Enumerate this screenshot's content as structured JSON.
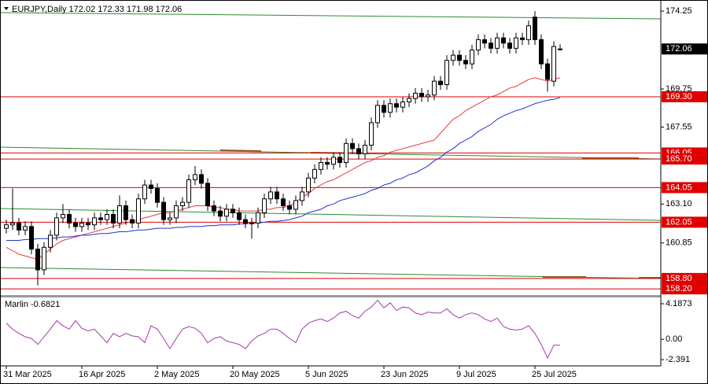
{
  "chart_data": {
    "type": "candlestick",
    "title": "EURJPY,Daily  172.02 172.33 171.98 172.06",
    "categories": [
      "31 Mar 2025",
      null,
      null,
      null,
      null,
      null,
      null,
      null,
      null,
      null,
      null,
      null,
      "16 Apr 2025",
      null,
      null,
      null,
      null,
      null,
      null,
      null,
      null,
      null,
      null,
      null,
      "2 May 2025",
      null,
      null,
      null,
      null,
      null,
      null,
      null,
      null,
      null,
      null,
      null,
      "20 May 2025",
      null,
      null,
      null,
      null,
      null,
      null,
      null,
      null,
      null,
      null,
      null,
      "5 Jun 2025",
      null,
      null,
      null,
      null,
      null,
      null,
      null,
      null,
      null,
      null,
      null,
      "23 Jun 2025",
      null,
      null,
      null,
      null,
      null,
      null,
      null,
      null,
      null,
      null,
      null,
      "9 Jul 2025",
      null,
      null,
      null,
      null,
      null,
      null,
      null,
      null,
      null,
      null,
      null,
      "25 Jul 2025",
      null,
      null,
      null,
      null
    ],
    "open": [
      161.7,
      161.9,
      162.0,
      161.6,
      161.8,
      160.5,
      159.3,
      160.6,
      161.3,
      162.3,
      162.5,
      162.0,
      161.8,
      162.0,
      161.9,
      162.3,
      162.2,
      162.5,
      162.0,
      163.0,
      162.2,
      162.0,
      163.4,
      164.2,
      164.0,
      163.2,
      162.2,
      162.3,
      163.0,
      163.2,
      164.5,
      164.8,
      164.3,
      163.0,
      162.7,
      162.4,
      162.8,
      162.6,
      162.2,
      162.0,
      162.0,
      162.6,
      163.4,
      163.8,
      163.4,
      163.0,
      162.8,
      163.3,
      163.8,
      164.6,
      165.1,
      165.5,
      165.4,
      165.8,
      165.5,
      166.6,
      166.3,
      166.0,
      166.5,
      167.8,
      168.8,
      168.4,
      168.9,
      168.7,
      169.0,
      169.2,
      169.5,
      169.3,
      169.4,
      170.2,
      170.0,
      171.4,
      171.7,
      171.4,
      171.2,
      172.0,
      172.6,
      172.4,
      172.1,
      172.7,
      172.4,
      172.1,
      172.7,
      172.6,
      173.9,
      172.6,
      171.2,
      170.2,
      172.02
    ],
    "high": [
      162.2,
      164.0,
      162.3,
      162.1,
      162.1,
      160.8,
      160.9,
      161.6,
      162.6,
      163.1,
      162.8,
      162.3,
      162.3,
      162.3,
      162.6,
      162.6,
      162.8,
      162.8,
      163.6,
      163.3,
      162.5,
      163.7,
      164.5,
      164.5,
      164.3,
      163.5,
      162.6,
      163.3,
      163.5,
      164.8,
      165.3,
      165.1,
      164.6,
      163.3,
      163.0,
      163.1,
      163.1,
      162.9,
      162.5,
      162.3,
      162.9,
      163.7,
      164.1,
      164.1,
      163.7,
      163.3,
      163.6,
      164.1,
      164.9,
      165.4,
      165.8,
      165.8,
      166.1,
      166.1,
      166.9,
      166.9,
      166.6,
      166.8,
      168.1,
      169.1,
      169.1,
      169.2,
      169.2,
      169.3,
      169.5,
      169.8,
      169.8,
      169.7,
      170.5,
      170.5,
      171.7,
      172.0,
      172.0,
      171.7,
      172.3,
      172.9,
      172.9,
      172.7,
      173.0,
      173.0,
      172.7,
      173.0,
      173.0,
      173.7,
      174.25,
      172.9,
      171.5,
      172.5,
      172.33
    ],
    "low": [
      161.4,
      161.6,
      161.3,
      161.3,
      160.2,
      158.4,
      159.0,
      160.3,
      161.0,
      162.0,
      161.7,
      161.5,
      161.5,
      161.6,
      161.6,
      161.9,
      161.9,
      161.7,
      161.7,
      161.9,
      161.7,
      161.7,
      163.1,
      163.7,
      162.9,
      161.9,
      161.9,
      162.0,
      162.7,
      162.9,
      164.2,
      164.0,
      162.7,
      162.4,
      162.1,
      162.1,
      162.3,
      161.9,
      161.7,
      161.1,
      161.7,
      162.3,
      163.1,
      163.1,
      162.7,
      162.5,
      162.5,
      163.0,
      163.5,
      164.3,
      164.8,
      165.1,
      165.1,
      165.2,
      165.2,
      166.0,
      165.7,
      165.7,
      166.2,
      167.5,
      168.1,
      168.1,
      168.4,
      168.4,
      168.7,
      168.9,
      169.0,
      169.0,
      169.1,
      169.7,
      169.7,
      171.1,
      171.1,
      170.9,
      170.9,
      171.7,
      172.1,
      171.8,
      171.8,
      172.1,
      171.8,
      171.8,
      172.3,
      172.3,
      172.3,
      170.9,
      169.6,
      169.9,
      171.98
    ],
    "close": [
      161.9,
      162.0,
      161.6,
      161.8,
      160.5,
      159.3,
      160.6,
      161.3,
      162.3,
      162.5,
      162.0,
      161.8,
      162.0,
      161.9,
      162.3,
      162.2,
      162.5,
      162.0,
      163.0,
      162.2,
      162.0,
      163.4,
      164.2,
      164.0,
      163.2,
      162.2,
      162.3,
      163.0,
      163.2,
      164.5,
      164.8,
      164.3,
      163.0,
      162.7,
      162.4,
      162.8,
      162.6,
      162.2,
      162.0,
      162.0,
      162.6,
      163.4,
      163.8,
      163.4,
      163.0,
      162.8,
      163.3,
      163.8,
      164.6,
      165.1,
      165.5,
      165.4,
      165.8,
      165.5,
      166.6,
      166.3,
      166.0,
      166.5,
      167.8,
      168.8,
      168.4,
      168.9,
      168.7,
      169.0,
      169.2,
      169.5,
      169.3,
      169.4,
      170.2,
      170.0,
      171.4,
      171.7,
      171.4,
      171.2,
      172.0,
      172.6,
      172.4,
      172.1,
      172.7,
      172.4,
      172.1,
      172.7,
      172.6,
      173.4,
      172.6,
      171.2,
      170.3,
      172.2,
      172.06
    ],
    "up_color": "#ffffff",
    "down_color": "#000000",
    "lines": [
      {
        "color": "#e8383d",
        "values": [
          160.6,
          160.4,
          160.2,
          160.1,
          160.0,
          159.9,
          160.2,
          160.5,
          160.8,
          161.0,
          161.1,
          161.2,
          161.3,
          161.4,
          161.5,
          161.6,
          161.7,
          161.8,
          161.9,
          162.0,
          162.1,
          162.2,
          162.3,
          162.4,
          162.5,
          162.6,
          162.6,
          162.7,
          162.8,
          162.9,
          163.0,
          163.0,
          163.0,
          162.9,
          162.9,
          162.8,
          162.8,
          162.7,
          162.7,
          162.7,
          162.7,
          162.8,
          162.8,
          162.9,
          162.9,
          163.0,
          163.2,
          163.5,
          163.7,
          164.0,
          164.2,
          164.4,
          164.5,
          164.7,
          164.9,
          165.1,
          165.3,
          165.5,
          165.6,
          165.8,
          165.9,
          166.1,
          166.2,
          166.3,
          166.4,
          166.5,
          166.6,
          166.7,
          166.8,
          167.2,
          167.6,
          168.0,
          168.2,
          168.5,
          168.7,
          168.9,
          169.1,
          169.3,
          169.4,
          169.6,
          169.8,
          169.9,
          170.1,
          170.3,
          170.4,
          170.3,
          170.2,
          170.3,
          170.4
        ]
      },
      {
        "color": "#2233cc",
        "values": [
          161.0,
          161.0,
          161.0,
          161.05,
          161.05,
          161.1,
          161.1,
          161.1,
          161.15,
          161.2,
          161.2,
          161.25,
          161.3,
          161.3,
          161.35,
          161.4,
          161.4,
          161.45,
          161.5,
          161.5,
          161.55,
          161.6,
          161.6,
          161.65,
          161.7,
          161.7,
          161.7,
          161.75,
          161.75,
          161.8,
          161.8,
          161.8,
          161.85,
          161.85,
          161.9,
          161.9,
          161.9,
          161.95,
          161.95,
          162.0,
          162.0,
          162.05,
          162.1,
          162.1,
          162.15,
          162.2,
          162.3,
          162.4,
          162.6,
          162.7,
          162.8,
          163.0,
          163.1,
          163.3,
          163.4,
          163.5,
          163.6,
          163.7,
          163.9,
          164.0,
          164.2,
          164.3,
          164.5,
          164.6,
          164.8,
          164.9,
          165.1,
          165.3,
          165.6,
          165.8,
          166.1,
          166.3,
          166.6,
          166.8,
          167.0,
          167.3,
          167.5,
          167.7,
          168.0,
          168.2,
          168.35,
          168.5,
          168.6,
          168.75,
          168.9,
          169.0,
          169.1,
          169.15,
          169.25
        ]
      }
    ],
    "levels": [
      {
        "value": 169.3,
        "label": "169.30"
      },
      166.05,
      {
        "value": 165.7,
        "label": "165.70"
      },
      164.05,
      162.05,
      {
        "value": 158.8,
        "label": "158.80"
      },
      {
        "value": 158.2,
        "label": "158.20"
      }
    ],
    "levels_color": "#e00000",
    "last_price": 172.06,
    "ylim": [
      157.84,
      174.89
    ],
    "yticks": [
      174.25,
      169.75,
      167.55,
      {
        "value": 163.1,
        "label": "163.10"
      },
      160.85
    ],
    "grid": false,
    "indicator": {
      "label": "Marlin -0.6821",
      "color": "#a23ba8",
      "values": [
        1.9,
        1.2,
        0.7,
        0.3,
        0.1,
        -0.6,
        0.3,
        1.2,
        2.2,
        1.6,
        1.2,
        2.2,
        1.3,
        1.0,
        1.2,
        0.4,
        -0.4,
        0.7,
        0.3,
        0.7,
        0.4,
        0.3,
        -0.4,
        1.6,
        1.2,
        0.1,
        -1.1,
        0.1,
        1.2,
        1.5,
        1.3,
        0.7,
        -0.4,
        0.1,
        0.3,
        -0.2,
        -0.4,
        -0.6,
        -1.1,
        -0.2,
        0.4,
        0.7,
        1.2,
        1.2,
        0.7,
        0.1,
        -0.4,
        1.2,
        1.9,
        2.2,
        2.4,
        2.1,
        2.5,
        3.1,
        3.3,
        2.8,
        2.5,
        3.3,
        3.8,
        4.6,
        3.7,
        4.3,
        3.4,
        3.8,
        3.7,
        3.1,
        2.9,
        3.2,
        3.1,
        3.1,
        3.6,
        2.9,
        2.5,
        2.9,
        3.1,
        2.9,
        2.4,
        2.1,
        2.5,
        1.5,
        1.2,
        1.1,
        1.2,
        1.6,
        0.7,
        -0.6,
        -2.2,
        -0.7,
        -0.6821
      ],
      "ylim": [
        -3.13,
        4.93
      ],
      "yticks": [
        4.1873,
        {
          "value": 0,
          "label": "0.00"
        },
        -2.391
      ]
    }
  }
}
